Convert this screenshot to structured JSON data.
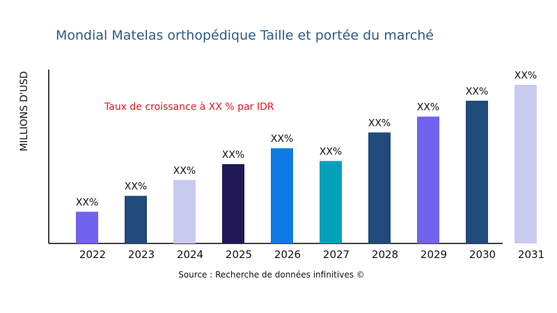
{
  "chart_data": {
    "type": "bar",
    "title": "Mondial Matelas orthopédique Taille et portée du marché",
    "ylabel": "MILLIONS D'USD",
    "xlabel": "",
    "annotation": "Taux de croissance à XX % par IDR",
    "source": "Source : Recherche de données infinitives ©",
    "categories": [
      "2022",
      "2023",
      "2024",
      "2025",
      "2026",
      "2027",
      "2028",
      "2029",
      "2030",
      "2031"
    ],
    "values": [
      20,
      30,
      40,
      50,
      60,
      52,
      70,
      80,
      90,
      100
    ],
    "data_labels": [
      "XX%",
      "XX%",
      "XX%",
      "XX%",
      "XX%",
      "XX%",
      "XX%",
      "XX%",
      "XX%",
      "XX%"
    ],
    "colors": [
      "#7163EE",
      "#1F4A7A",
      "#C8CBEF",
      "#1E1856",
      "#0F7AE5",
      "#03A0B9",
      "#1F4A7A",
      "#7163EE",
      "#1F4A7A",
      "#C8CBEF"
    ],
    "ylim": [
      0,
      100
    ],
    "grid": false,
    "legend": "none"
  }
}
